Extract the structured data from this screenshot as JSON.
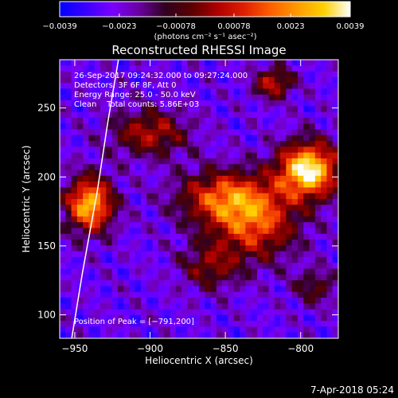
{
  "chart_data": {
    "type": "heatmap",
    "title": "Reconstructed RHESSI Image",
    "xlabel": "Heliocentric X (arcsec)",
    "ylabel": "Heliocentric Y (arcsec)",
    "xlim": [
      -960,
      -775
    ],
    "ylim": [
      83,
      285
    ],
    "xticks": [
      -950,
      -900,
      -850,
      -800
    ],
    "xtick_labels": [
      "−950",
      "−900",
      "−850",
      "−800"
    ],
    "yticks": [
      100,
      150,
      200,
      250
    ],
    "ytick_labels": [
      "100",
      "150",
      "200",
      "250"
    ],
    "colorbar": {
      "range": [
        -0.0039,
        0.0039
      ],
      "ticks": [
        -0.0039,
        -0.0023,
        -0.00078,
        0.00078,
        0.0023,
        0.0039
      ],
      "tick_labels": [
        "−0.0039",
        "−0.0023",
        "−0.00078",
        "0.00078",
        "0.0023",
        "0.0039"
      ],
      "units": "(photons cm⁻² s⁻¹ asec⁻²)",
      "colormap": [
        "#0000ff",
        "#3a00ff",
        "#7a00ff",
        "#6a00a0",
        "#300020",
        "#5a0000",
        "#b00000",
        "#e02000",
        "#ff6000",
        "#ff9a00",
        "#ffd000",
        "#ffffff"
      ]
    },
    "annotations": [
      "26-Sep-2017 09:24:32.000 to 09:27:24.000",
      "Detectors: 3F 6F 8F, Att 0",
      "Energy Range: 25.0 - 50.0 keV",
      "Clean    Total counts: 5.86E+03"
    ],
    "peak_label": "Position of Peak = [−791,200]",
    "sources": [
      {
        "x": -795,
        "y": 205,
        "sx": 14,
        "sy": 14,
        "amp": 1.0
      },
      {
        "x": -940,
        "y": 180,
        "sx": 11,
        "sy": 14,
        "amp": 0.85
      },
      {
        "x": -850,
        "y": 185,
        "sx": 22,
        "sy": 14,
        "amp": 0.6
      },
      {
        "x": -830,
        "y": 165,
        "sx": 20,
        "sy": 18,
        "amp": 0.55
      },
      {
        "x": -900,
        "y": 232,
        "sx": 18,
        "sy": 12,
        "amp": 0.45
      },
      {
        "x": -818,
        "y": 268,
        "sx": 9,
        "sy": 8,
        "amp": 0.5
      },
      {
        "x": -860,
        "y": 135,
        "sx": 14,
        "sy": 12,
        "amp": 0.35
      },
      {
        "x": -790,
        "y": 120,
        "sx": 10,
        "sy": 9,
        "amp": 0.3
      }
    ],
    "limb_curve": {
      "x": [
        -952,
        -945,
        -935,
        -928,
        -921
      ],
      "y": [
        83,
        130,
        190,
        240,
        285
      ]
    }
  },
  "footer": {
    "timestamp": "7-Apr-2018 05:24"
  }
}
